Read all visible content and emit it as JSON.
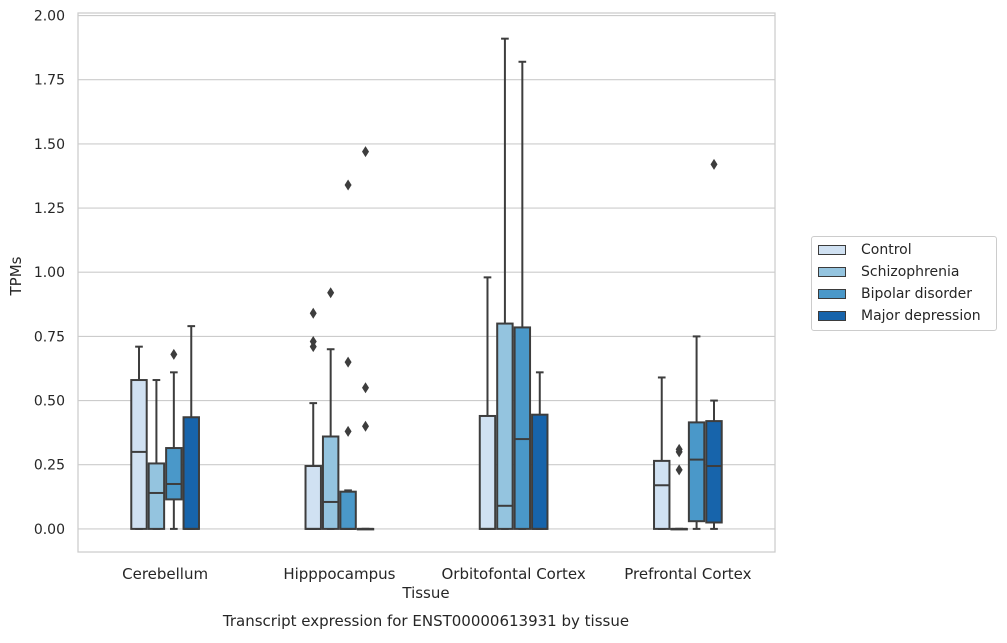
{
  "chart_data": {
    "type": "boxplot",
    "title": "Transcript expression for ENST00000613931 by tissue",
    "xlabel": "Tissue",
    "ylabel": "TPMs",
    "ylim": [
      -0.09,
      2.01
    ],
    "yticks": [
      "0.00",
      "0.25",
      "0.50",
      "0.75",
      "1.00",
      "1.25",
      "1.50",
      "1.75",
      "2.00"
    ],
    "categories": [
      "Cerebellum",
      "Hipppocampus",
      "Orbitofontal Cortex",
      "Prefrontal Cortex"
    ],
    "grid": true,
    "legend_position": "right",
    "series": [
      {
        "name": "Control",
        "color": "#d0e1f2",
        "boxes": [
          {
            "whislo": 0,
            "q1": 0,
            "med": 0.3,
            "q3": 0.58,
            "whishi": 0.71,
            "fliers": []
          },
          {
            "whislo": 0,
            "q1": 0,
            "med": 0,
            "q3": 0.245,
            "whishi": 0.49,
            "fliers": [
              0.71,
              0.73,
              0.84
            ]
          },
          {
            "whislo": 0,
            "q1": 0,
            "med": 0,
            "q3": 0.44,
            "whishi": 0.98,
            "fliers": []
          },
          {
            "whislo": 0,
            "q1": 0,
            "med": 0.17,
            "q3": 0.265,
            "whishi": 0.59,
            "fliers": []
          }
        ]
      },
      {
        "name": "Schizophrenia",
        "color": "#94c4df",
        "boxes": [
          {
            "whislo": 0,
            "q1": 0,
            "med": 0.14,
            "q3": 0.255,
            "whishi": 0.58,
            "fliers": []
          },
          {
            "whislo": 0,
            "q1": 0,
            "med": 0.105,
            "q3": 0.36,
            "whishi": 0.7,
            "fliers": [
              0.92
            ]
          },
          {
            "whislo": 0,
            "q1": 0,
            "med": 0.09,
            "q3": 0.8,
            "whishi": 1.91,
            "fliers": []
          },
          {
            "whislo": 0,
            "q1": 0,
            "med": 0,
            "q3": 0,
            "whishi": 0,
            "fliers": [
              0.23,
              0.3,
              0.31
            ]
          }
        ]
      },
      {
        "name": "Bipolar disorder",
        "color": "#4a98c9",
        "boxes": [
          {
            "whislo": 0,
            "q1": 0.115,
            "med": 0.175,
            "q3": 0.315,
            "whishi": 0.61,
            "fliers": [
              0.68
            ]
          },
          {
            "whislo": 0,
            "q1": 0,
            "med": 0,
            "q3": 0.145,
            "whishi": 0.15,
            "fliers": [
              0.38,
              0.65,
              1.34
            ]
          },
          {
            "whislo": 0,
            "q1": 0,
            "med": 0.35,
            "q3": 0.785,
            "whishi": 1.82,
            "fliers": []
          },
          {
            "whislo": 0,
            "q1": 0.03,
            "med": 0.27,
            "q3": 0.415,
            "whishi": 0.75,
            "fliers": []
          }
        ]
      },
      {
        "name": "Major depression",
        "color": "#1764ab",
        "boxes": [
          {
            "whislo": 0,
            "q1": 0,
            "med": 0,
            "q3": 0.435,
            "whishi": 0.79,
            "fliers": []
          },
          {
            "whislo": 0,
            "q1": 0,
            "med": 0,
            "q3": 0,
            "whishi": 0,
            "fliers": [
              0.4,
              0.55,
              1.47
            ]
          },
          {
            "whislo": 0,
            "q1": 0,
            "med": 0,
            "q3": 0.445,
            "whishi": 0.61,
            "fliers": []
          },
          {
            "whislo": 0,
            "q1": 0.025,
            "med": 0.245,
            "q3": 0.42,
            "whishi": 0.5,
            "fliers": [
              1.42
            ]
          }
        ]
      }
    ]
  }
}
